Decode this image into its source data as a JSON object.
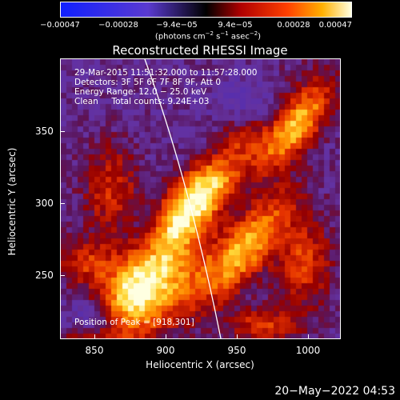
{
  "colorbar": {
    "ticks": [
      "−0.00047",
      "−0.00028",
      "−9.4e−05",
      "9.4e−05",
      "0.00028",
      "0.00047"
    ],
    "unit_main": "(photons cm",
    "unit_exp1": "−2",
    "unit_mid": " s",
    "unit_exp2": "−1",
    "unit_end": " asec",
    "unit_exp3": "−2",
    "unit_close": ")"
  },
  "title": "Reconstructed RHESSI Image",
  "info": {
    "time": "29-Mar-2015 11:51:32.000 to 11:57:28.000",
    "detectors": "Detectors: 3F 5F 6F 7F 8F 9F, Att 0",
    "energy": "Energy Range: 12.0 − 25.0 keV",
    "clean": "Clean     Total counts: 9.24E+03",
    "peak": "Position of Peak = [918,301]"
  },
  "axes": {
    "xlabel": "Heliocentric X (arcsec)",
    "ylabel": "Heliocentric Y (arcsec)",
    "xticks": [
      "850",
      "900",
      "950",
      "1000"
    ],
    "yticks": [
      "350",
      "300",
      "250"
    ]
  },
  "timestamp": "20−May−2022 04:53"
}
